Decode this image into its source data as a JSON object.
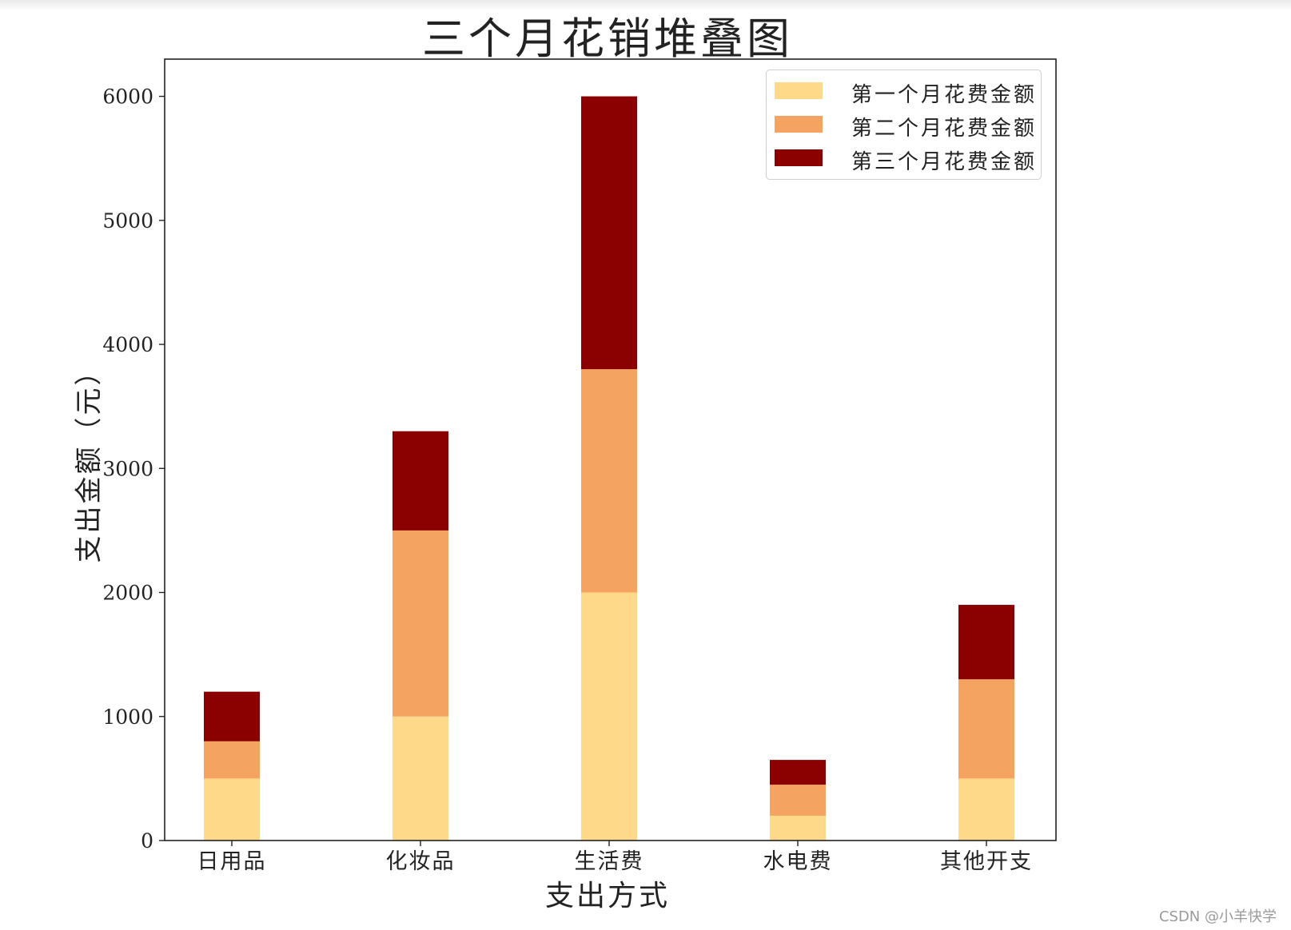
{
  "watermark": "CSDN @小羊快学",
  "chart_data": {
    "type": "bar",
    "stacked": true,
    "title": "三个月花销堆叠图",
    "xlabel": "支出方式",
    "ylabel": "支出金额（元）",
    "categories": [
      "日用品",
      "化妆品",
      "生活费",
      "水电费",
      "其他开支"
    ],
    "series": [
      {
        "name": "第一个月花费金额",
        "color": "#FFD98A",
        "values": [
          500,
          1000,
          2000,
          200,
          500
        ]
      },
      {
        "name": "第二个月花费金额",
        "color": "#F4A460",
        "values": [
          300,
          1500,
          1800,
          250,
          800
        ]
      },
      {
        "name": "第三个月花费金额",
        "color": "#8B0000",
        "values": [
          400,
          800,
          2200,
          200,
          600
        ]
      }
    ],
    "ylim": [
      0,
      6300
    ],
    "yticks": [
      0,
      1000,
      2000,
      3000,
      4000,
      5000,
      6000
    ],
    "legend": "top-right",
    "grid": false
  }
}
